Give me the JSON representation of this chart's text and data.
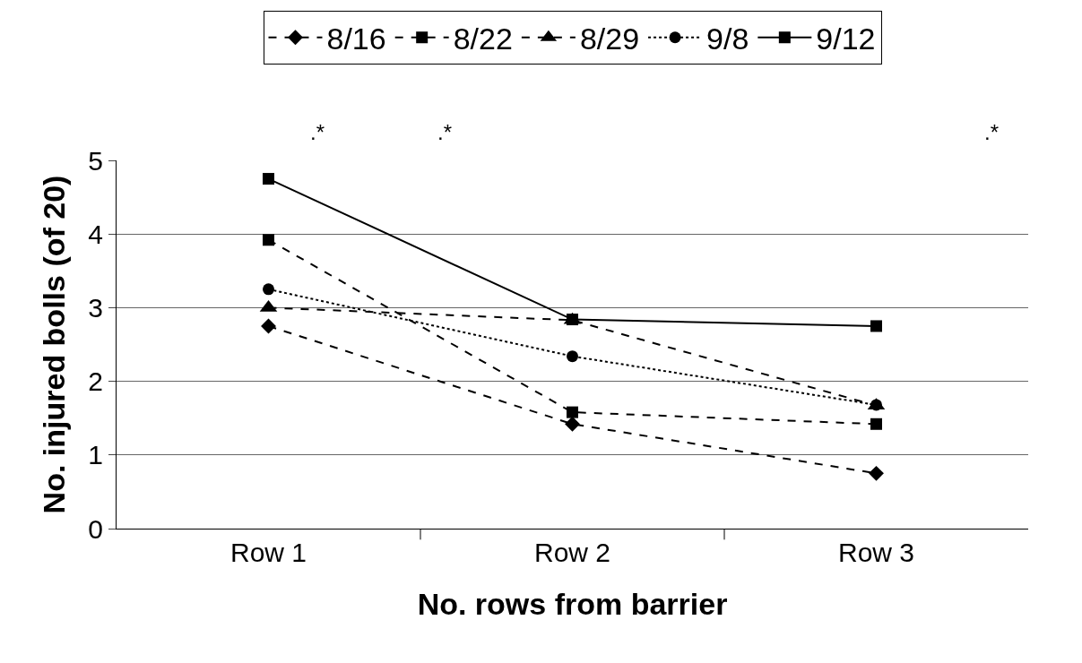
{
  "chart_data": {
    "type": "line",
    "xlabel": "No. rows from barrier",
    "ylabel": "No. injured bolls (of 20)",
    "categories": [
      "Row 1",
      "Row 2",
      "Row 3"
    ],
    "series": [
      {
        "name": "8/16",
        "color": "#000000",
        "marker": "diamond",
        "line_style": "dashed",
        "values": [
          2.75,
          1.42,
          0.75
        ]
      },
      {
        "name": "8/22",
        "color": "#000000",
        "marker": "square",
        "line_style": "dashed",
        "values": [
          3.92,
          1.58,
          1.42
        ]
      },
      {
        "name": "8/29",
        "color": "#000000",
        "marker": "triangle",
        "line_style": "dashed",
        "values": [
          3.0,
          2.83,
          1.67
        ]
      },
      {
        "name": "9/8",
        "color": "#000000",
        "marker": "circle",
        "line_style": "dotted",
        "values": [
          3.25,
          2.34,
          1.68
        ]
      },
      {
        "name": "9/12",
        "color": "#000000",
        "marker": "square",
        "line_style": "solid",
        "values": [
          4.75,
          2.84,
          2.75
        ]
      }
    ],
    "ylim": [
      0,
      5
    ],
    "yticks": [
      0,
      1,
      2,
      3,
      4,
      5
    ],
    "grid": "y",
    "legend": "top",
    "annotations": [
      ".*",
      ".*",
      ".*"
    ]
  }
}
